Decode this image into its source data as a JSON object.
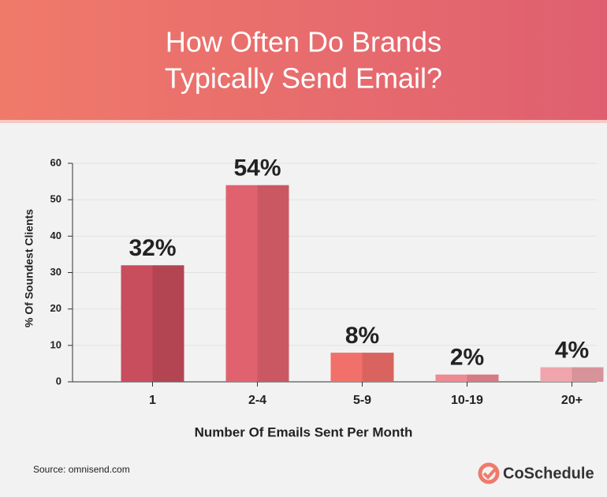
{
  "chart_data": {
    "type": "bar",
    "title": [
      "How Often Do Brands",
      "Typically Send Email?"
    ],
    "categories": [
      "1",
      "2-4",
      "5-9",
      "10-19",
      "20+"
    ],
    "values": [
      32,
      54,
      8,
      2,
      4
    ],
    "value_labels": [
      "32%",
      "54%",
      "8%",
      "2%",
      "4%"
    ],
    "colors": [
      "#c84d5d",
      "#e0626e",
      "#f2706a",
      "#ee8a92",
      "#f0a4ab"
    ],
    "ylim": [
      0,
      60
    ],
    "yticks": [
      0,
      10,
      20,
      30,
      40,
      50,
      60
    ],
    "grid": true,
    "xlabel": "Number Of Emails Sent Per Month",
    "ylabel": "% Of Soundest Clients",
    "source": "Source: omnisend.com",
    "brand": "CoSchedule"
  }
}
